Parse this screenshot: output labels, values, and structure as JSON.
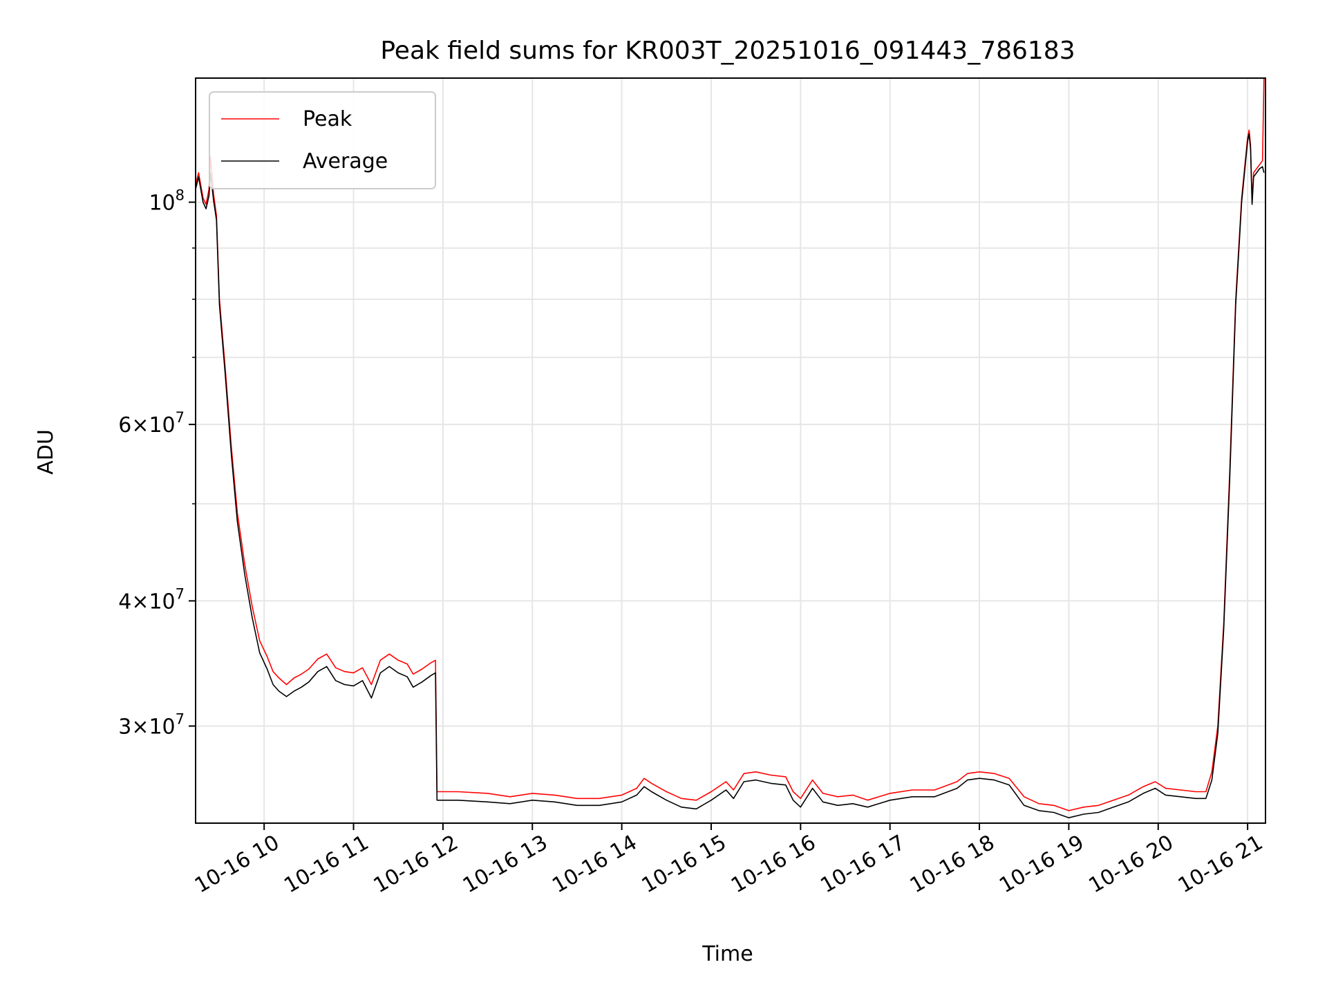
{
  "chart_data": {
    "type": "line",
    "title": "Peak field sums for KR003T_20251016_091443_786183",
    "xlabel": "Time",
    "ylabel": "ADU",
    "y_scale": "log",
    "ylim": [
      24000000,
      133000000
    ],
    "xlim": [
      "2025-10-16 09:14",
      "2025-10-16 21:12"
    ],
    "grid": true,
    "legend_position": "upper left",
    "x_ticks": [
      {
        "t": "2025-10-16 10:00",
        "label": "10-16 10"
      },
      {
        "t": "2025-10-16 11:00",
        "label": "10-16 11"
      },
      {
        "t": "2025-10-16 12:00",
        "label": "10-16 12"
      },
      {
        "t": "2025-10-16 13:00",
        "label": "10-16 13"
      },
      {
        "t": "2025-10-16 14:00",
        "label": "10-16 14"
      },
      {
        "t": "2025-10-16 15:00",
        "label": "10-16 15"
      },
      {
        "t": "2025-10-16 16:00",
        "label": "10-16 16"
      },
      {
        "t": "2025-10-16 17:00",
        "label": "10-16 17"
      },
      {
        "t": "2025-10-16 18:00",
        "label": "10-16 18"
      },
      {
        "t": "2025-10-16 19:00",
        "label": "10-16 19"
      },
      {
        "t": "2025-10-16 20:00",
        "label": "10-16 20"
      },
      {
        "t": "2025-10-16 21:00",
        "label": "10-16 21"
      }
    ],
    "y_major_ticks": [
      {
        "value": 30000000,
        "mantissa": "3",
        "exp": "7"
      },
      {
        "value": 40000000,
        "mantissa": "4",
        "exp": "7"
      },
      {
        "value": 60000000,
        "mantissa": "6",
        "exp": "7"
      },
      {
        "value": 100000000,
        "mantissa": "",
        "exp": "8"
      }
    ],
    "y_minor_ticks": [
      50000000,
      70000000,
      80000000,
      90000000
    ],
    "series": [
      {
        "name": "Peak",
        "color": "#ff0000",
        "points": [
          [
            "2025-10-16 09:14",
            104000000
          ],
          [
            "2025-10-16 09:16",
            107000000
          ],
          [
            "2025-10-16 09:19",
            101000000
          ],
          [
            "2025-10-16 09:21",
            99500000
          ],
          [
            "2025-10-16 09:23",
            103000000
          ],
          [
            "2025-10-16 09:24",
            111000000
          ],
          [
            "2025-10-16 09:26",
            102000000
          ],
          [
            "2025-10-16 09:28",
            97000000
          ],
          [
            "2025-10-16 09:30",
            80000000
          ],
          [
            "2025-10-16 09:34",
            68000000
          ],
          [
            "2025-10-16 09:38",
            57000000
          ],
          [
            "2025-10-16 09:42",
            49000000
          ],
          [
            "2025-10-16 09:47",
            43500000
          ],
          [
            "2025-10-16 09:52",
            39500000
          ],
          [
            "2025-10-16 09:57",
            36500000
          ],
          [
            "2025-10-16 10:02",
            35200000
          ],
          [
            "2025-10-16 10:06",
            34000000
          ],
          [
            "2025-10-16 10:10",
            33500000
          ],
          [
            "2025-10-16 10:15",
            33000000
          ],
          [
            "2025-10-16 10:20",
            33500000
          ],
          [
            "2025-10-16 10:25",
            33800000
          ],
          [
            "2025-10-16 10:30",
            34200000
          ],
          [
            "2025-10-16 10:36",
            35000000
          ],
          [
            "2025-10-16 10:42",
            35400000
          ],
          [
            "2025-10-16 10:48",
            34300000
          ],
          [
            "2025-10-16 10:54",
            34000000
          ],
          [
            "2025-10-16 11:00",
            33900000
          ],
          [
            "2025-10-16 11:06",
            34300000
          ],
          [
            "2025-10-16 11:12",
            33000000
          ],
          [
            "2025-10-16 11:18",
            34900000
          ],
          [
            "2025-10-16 11:24",
            35400000
          ],
          [
            "2025-10-16 11:30",
            34900000
          ],
          [
            "2025-10-16 11:36",
            34600000
          ],
          [
            "2025-10-16 11:40",
            33800000
          ],
          [
            "2025-10-16 11:46",
            34200000
          ],
          [
            "2025-10-16 11:52",
            34700000
          ],
          [
            "2025-10-16 11:55",
            34900000
          ],
          [
            "2025-10-16 11:56",
            25800000
          ],
          [
            "2025-10-16 12:10",
            25800000
          ],
          [
            "2025-10-16 12:30",
            25700000
          ],
          [
            "2025-10-16 12:45",
            25500000
          ],
          [
            "2025-10-16 13:00",
            25700000
          ],
          [
            "2025-10-16 13:15",
            25600000
          ],
          [
            "2025-10-16 13:30",
            25400000
          ],
          [
            "2025-10-16 13:45",
            25400000
          ],
          [
            "2025-10-16 14:00",
            25600000
          ],
          [
            "2025-10-16 14:10",
            26000000
          ],
          [
            "2025-10-16 14:15",
            26600000
          ],
          [
            "2025-10-16 14:20",
            26300000
          ],
          [
            "2025-10-16 14:30",
            25800000
          ],
          [
            "2025-10-16 14:40",
            25400000
          ],
          [
            "2025-10-16 14:50",
            25300000
          ],
          [
            "2025-10-16 15:00",
            25800000
          ],
          [
            "2025-10-16 15:10",
            26400000
          ],
          [
            "2025-10-16 15:15",
            25900000
          ],
          [
            "2025-10-16 15:22",
            26900000
          ],
          [
            "2025-10-16 15:30",
            27000000
          ],
          [
            "2025-10-16 15:40",
            26800000
          ],
          [
            "2025-10-16 15:50",
            26700000
          ],
          [
            "2025-10-16 15:55",
            25800000
          ],
          [
            "2025-10-16 16:00",
            25400000
          ],
          [
            "2025-10-16 16:08",
            26500000
          ],
          [
            "2025-10-16 16:15",
            25700000
          ],
          [
            "2025-10-16 16:25",
            25500000
          ],
          [
            "2025-10-16 16:35",
            25600000
          ],
          [
            "2025-10-16 16:45",
            25300000
          ],
          [
            "2025-10-16 17:00",
            25700000
          ],
          [
            "2025-10-16 17:15",
            25900000
          ],
          [
            "2025-10-16 17:30",
            25900000
          ],
          [
            "2025-10-16 17:45",
            26400000
          ],
          [
            "2025-10-16 17:52",
            26900000
          ],
          [
            "2025-10-16 18:00",
            27000000
          ],
          [
            "2025-10-16 18:10",
            26900000
          ],
          [
            "2025-10-16 18:20",
            26600000
          ],
          [
            "2025-10-16 18:30",
            25500000
          ],
          [
            "2025-10-16 18:40",
            25100000
          ],
          [
            "2025-10-16 18:50",
            25000000
          ],
          [
            "2025-10-16 19:00",
            24700000
          ],
          [
            "2025-10-16 19:10",
            24900000
          ],
          [
            "2025-10-16 19:20",
            25000000
          ],
          [
            "2025-10-16 19:30",
            25300000
          ],
          [
            "2025-10-16 19:40",
            25600000
          ],
          [
            "2025-10-16 19:50",
            26100000
          ],
          [
            "2025-10-16 19:58",
            26400000
          ],
          [
            "2025-10-16 20:05",
            26000000
          ],
          [
            "2025-10-16 20:15",
            25900000
          ],
          [
            "2025-10-16 20:25",
            25800000
          ],
          [
            "2025-10-16 20:32",
            25800000
          ],
          [
            "2025-10-16 20:36",
            27000000
          ],
          [
            "2025-10-16 20:40",
            30000000
          ],
          [
            "2025-10-16 20:44",
            38000000
          ],
          [
            "2025-10-16 20:48",
            54000000
          ],
          [
            "2025-10-16 20:52",
            80000000
          ],
          [
            "2025-10-16 20:56",
            101000000
          ],
          [
            "2025-10-16 21:00",
            116000000
          ],
          [
            "2025-10-16 21:01",
            118000000
          ],
          [
            "2025-10-16 21:02",
            114000000
          ],
          [
            "2025-10-16 21:03",
            100000000
          ],
          [
            "2025-10-16 21:04",
            107000000
          ],
          [
            "2025-10-16 21:08",
            109000000
          ],
          [
            "2025-10-16 21:10",
            110000000
          ],
          [
            "2025-10-16 21:11",
            133000000
          ]
        ]
      },
      {
        "name": "Average",
        "color": "#000000",
        "points": [
          [
            "2025-10-16 09:14",
            103000000
          ],
          [
            "2025-10-16 09:16",
            106000000
          ],
          [
            "2025-10-16 09:19",
            100000000
          ],
          [
            "2025-10-16 09:21",
            98500000
          ],
          [
            "2025-10-16 09:23",
            101500000
          ],
          [
            "2025-10-16 09:24",
            107000000
          ],
          [
            "2025-10-16 09:26",
            100500000
          ],
          [
            "2025-10-16 09:28",
            96000000
          ],
          [
            "2025-10-16 09:30",
            79000000
          ],
          [
            "2025-10-16 09:34",
            67000000
          ],
          [
            "2025-10-16 09:38",
            56000000
          ],
          [
            "2025-10-16 09:42",
            48000000
          ],
          [
            "2025-10-16 09:47",
            42500000
          ],
          [
            "2025-10-16 09:52",
            38500000
          ],
          [
            "2025-10-16 09:57",
            35500000
          ],
          [
            "2025-10-16 10:02",
            34200000
          ],
          [
            "2025-10-16 10:06",
            33000000
          ],
          [
            "2025-10-16 10:10",
            32500000
          ],
          [
            "2025-10-16 10:15",
            32100000
          ],
          [
            "2025-10-16 10:20",
            32500000
          ],
          [
            "2025-10-16 10:25",
            32800000
          ],
          [
            "2025-10-16 10:30",
            33200000
          ],
          [
            "2025-10-16 10:36",
            34000000
          ],
          [
            "2025-10-16 10:42",
            34400000
          ],
          [
            "2025-10-16 10:48",
            33300000
          ],
          [
            "2025-10-16 10:54",
            33000000
          ],
          [
            "2025-10-16 11:00",
            32900000
          ],
          [
            "2025-10-16 11:06",
            33300000
          ],
          [
            "2025-10-16 11:12",
            32000000
          ],
          [
            "2025-10-16 11:18",
            33900000
          ],
          [
            "2025-10-16 11:24",
            34400000
          ],
          [
            "2025-10-16 11:30",
            33900000
          ],
          [
            "2025-10-16 11:36",
            33600000
          ],
          [
            "2025-10-16 11:40",
            32800000
          ],
          [
            "2025-10-16 11:46",
            33200000
          ],
          [
            "2025-10-16 11:52",
            33700000
          ],
          [
            "2025-10-16 11:55",
            33900000
          ],
          [
            "2025-10-16 11:56",
            25300000
          ],
          [
            "2025-10-16 12:10",
            25300000
          ],
          [
            "2025-10-16 12:30",
            25200000
          ],
          [
            "2025-10-16 12:45",
            25100000
          ],
          [
            "2025-10-16 13:00",
            25300000
          ],
          [
            "2025-10-16 13:15",
            25200000
          ],
          [
            "2025-10-16 13:30",
            25000000
          ],
          [
            "2025-10-16 13:45",
            25000000
          ],
          [
            "2025-10-16 14:00",
            25200000
          ],
          [
            "2025-10-16 14:10",
            25600000
          ],
          [
            "2025-10-16 14:15",
            26100000
          ],
          [
            "2025-10-16 14:20",
            25800000
          ],
          [
            "2025-10-16 14:30",
            25300000
          ],
          [
            "2025-10-16 14:40",
            24900000
          ],
          [
            "2025-10-16 14:50",
            24800000
          ],
          [
            "2025-10-16 15:00",
            25300000
          ],
          [
            "2025-10-16 15:10",
            25900000
          ],
          [
            "2025-10-16 15:15",
            25400000
          ],
          [
            "2025-10-16 15:22",
            26400000
          ],
          [
            "2025-10-16 15:30",
            26500000
          ],
          [
            "2025-10-16 15:40",
            26300000
          ],
          [
            "2025-10-16 15:50",
            26200000
          ],
          [
            "2025-10-16 15:55",
            25300000
          ],
          [
            "2025-10-16 16:00",
            24900000
          ],
          [
            "2025-10-16 16:08",
            26000000
          ],
          [
            "2025-10-16 16:15",
            25200000
          ],
          [
            "2025-10-16 16:25",
            25000000
          ],
          [
            "2025-10-16 16:35",
            25100000
          ],
          [
            "2025-10-16 16:45",
            24900000
          ],
          [
            "2025-10-16 17:00",
            25300000
          ],
          [
            "2025-10-16 17:15",
            25500000
          ],
          [
            "2025-10-16 17:30",
            25500000
          ],
          [
            "2025-10-16 17:45",
            26000000
          ],
          [
            "2025-10-16 17:52",
            26500000
          ],
          [
            "2025-10-16 18:00",
            26600000
          ],
          [
            "2025-10-16 18:10",
            26500000
          ],
          [
            "2025-10-16 18:20",
            26200000
          ],
          [
            "2025-10-16 18:30",
            25000000
          ],
          [
            "2025-10-16 18:40",
            24700000
          ],
          [
            "2025-10-16 18:50",
            24600000
          ],
          [
            "2025-10-16 19:00",
            24300000
          ],
          [
            "2025-10-16 19:10",
            24500000
          ],
          [
            "2025-10-16 19:20",
            24600000
          ],
          [
            "2025-10-16 19:30",
            24900000
          ],
          [
            "2025-10-16 19:40",
            25200000
          ],
          [
            "2025-10-16 19:50",
            25700000
          ],
          [
            "2025-10-16 19:58",
            26000000
          ],
          [
            "2025-10-16 20:05",
            25600000
          ],
          [
            "2025-10-16 20:15",
            25500000
          ],
          [
            "2025-10-16 20:25",
            25400000
          ],
          [
            "2025-10-16 20:32",
            25400000
          ],
          [
            "2025-10-16 20:36",
            26500000
          ],
          [
            "2025-10-16 20:40",
            29500000
          ],
          [
            "2025-10-16 20:44",
            37500000
          ],
          [
            "2025-10-16 20:48",
            53000000
          ],
          [
            "2025-10-16 20:52",
            79000000
          ],
          [
            "2025-10-16 20:56",
            100000000
          ],
          [
            "2025-10-16 21:00",
            115000000
          ],
          [
            "2025-10-16 21:01",
            117000000
          ],
          [
            "2025-10-16 21:02",
            113000000
          ],
          [
            "2025-10-16 21:03",
            99500000
          ],
          [
            "2025-10-16 21:04",
            106000000
          ],
          [
            "2025-10-16 21:08",
            108000000
          ],
          [
            "2025-10-16 21:10",
            108500000
          ],
          [
            "2025-10-16 21:11",
            107000000
          ]
        ]
      }
    ]
  }
}
